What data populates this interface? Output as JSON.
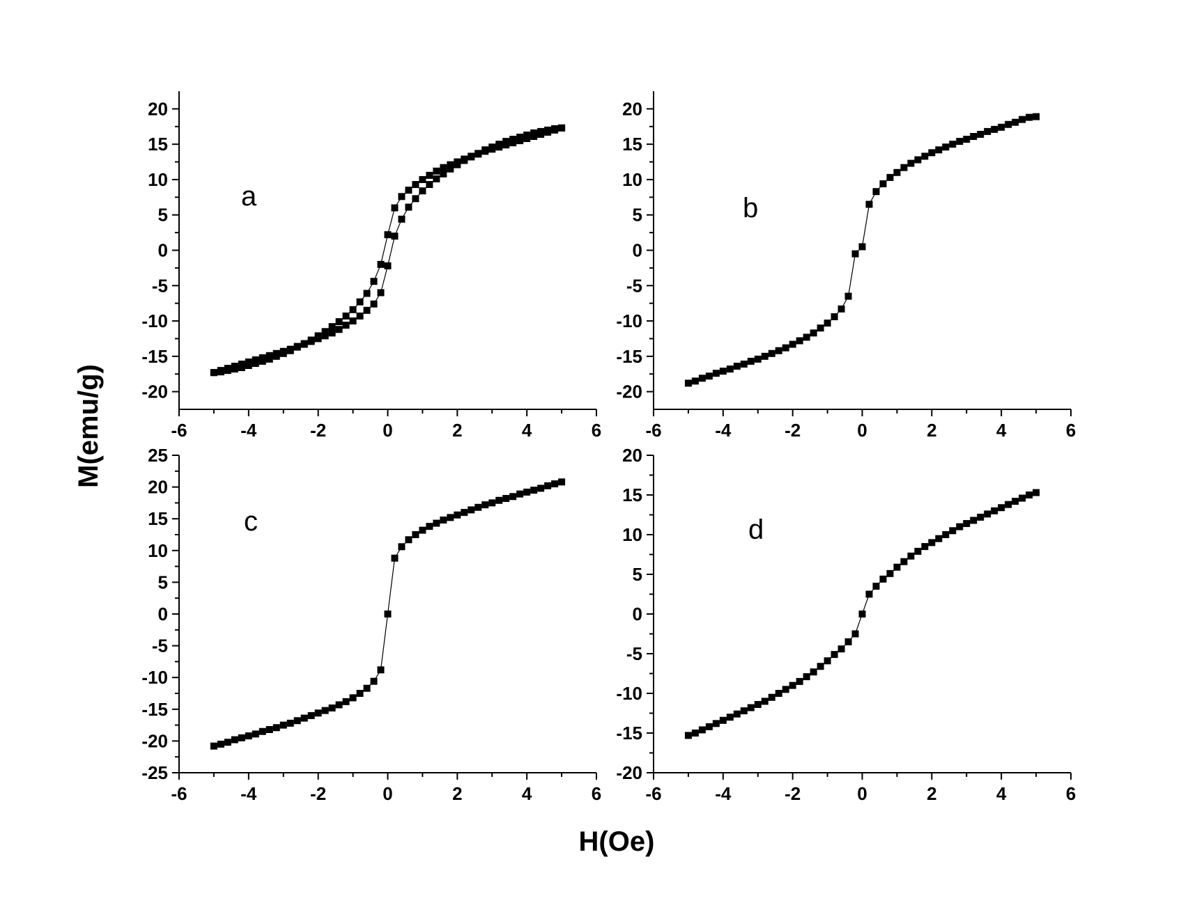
{
  "figure": {
    "ylabel": "M(emu/g)",
    "xlabel": "H(Oe)",
    "marker_color": "#000000"
  },
  "chart_data": [
    {
      "type": "scatter",
      "panel_label": "a",
      "xlim": [
        -6,
        6
      ],
      "ylim": [
        -22.5,
        22.5
      ],
      "xticks": [
        -6,
        -4,
        -2,
        0,
        2,
        4,
        6
      ],
      "yticks": [
        -20,
        -15,
        -10,
        -5,
        0,
        5,
        10,
        15,
        20
      ],
      "series": [
        {
          "x": [
            5,
            4.8,
            4.6,
            4.4,
            4.2,
            4,
            3.8,
            3.6,
            3.4,
            3.2,
            3,
            2.8,
            2.6,
            2.4,
            2.2,
            2,
            1.8,
            1.6,
            1.4,
            1.2,
            1,
            0.8,
            0.6,
            0.4,
            0.2,
            0,
            -0.2,
            -0.4,
            -0.6,
            -0.8,
            -1,
            -1.2,
            -1.4,
            -1.6,
            -1.8,
            -2,
            -2.2,
            -2.4,
            -2.6,
            -2.8,
            -3,
            -3.2,
            -3.4,
            -3.6,
            -3.8,
            -4,
            -4.2,
            -4.4,
            -4.6,
            -4.8,
            -5
          ],
          "y": [
            17.3,
            17.0,
            16.7,
            16.4,
            16.1,
            15.8,
            15.5,
            15.2,
            14.9,
            14.6,
            14.3,
            14.0,
            13.6,
            13.3,
            12.9,
            12.5,
            12.1,
            11.7,
            11.2,
            10.6,
            10.0,
            9.3,
            8.5,
            7.6,
            6.0,
            2.2,
            -2.0,
            -4.4,
            -6.1,
            -7.3,
            -8.4,
            -9.3,
            -10.1,
            -10.8,
            -11.5,
            -12.1,
            -12.7,
            -13.2,
            -13.7,
            -14.2,
            -14.6,
            -15.0,
            -15.4,
            -15.7,
            -16.0,
            -16.3,
            -16.6,
            -16.8,
            -17.0,
            -17.2,
            -17.3
          ]
        },
        {
          "x": [
            -5,
            -4.8,
            -4.6,
            -4.4,
            -4.2,
            -4,
            -3.8,
            -3.6,
            -3.4,
            -3.2,
            -3,
            -2.8,
            -2.6,
            -2.4,
            -2.2,
            -2,
            -1.8,
            -1.6,
            -1.4,
            -1.2,
            -1,
            -0.8,
            -0.6,
            -0.4,
            -0.2,
            0,
            0.2,
            0.4,
            0.6,
            0.8,
            1,
            1.2,
            1.4,
            1.6,
            1.8,
            2,
            2.2,
            2.4,
            2.6,
            2.8,
            3,
            3.2,
            3.4,
            3.6,
            3.8,
            4,
            4.2,
            4.4,
            4.6,
            4.8,
            5
          ],
          "y": [
            -17.3,
            -17.0,
            -16.7,
            -16.4,
            -16.1,
            -15.8,
            -15.5,
            -15.2,
            -14.9,
            -14.6,
            -14.3,
            -14.0,
            -13.6,
            -13.3,
            -12.9,
            -12.5,
            -12.1,
            -11.7,
            -11.2,
            -10.6,
            -10.0,
            -9.3,
            -8.5,
            -7.6,
            -6.0,
            -2.2,
            2.0,
            4.4,
            6.1,
            7.3,
            8.4,
            9.3,
            10.1,
            10.8,
            11.5,
            12.1,
            12.7,
            13.2,
            13.7,
            14.2,
            14.6,
            15.0,
            15.4,
            15.7,
            16.0,
            16.3,
            16.6,
            16.8,
            17.0,
            17.2,
            17.3
          ]
        }
      ]
    },
    {
      "type": "scatter",
      "panel_label": "b",
      "xlim": [
        -6,
        6
      ],
      "ylim": [
        -22.5,
        22.5
      ],
      "xticks": [
        -6,
        -4,
        -2,
        0,
        2,
        4,
        6
      ],
      "yticks": [
        -20,
        -15,
        -10,
        -5,
        0,
        5,
        10,
        15,
        20
      ],
      "series": [
        {
          "x": [
            -5,
            -4.8,
            -4.6,
            -4.4,
            -4.2,
            -4,
            -3.8,
            -3.6,
            -3.4,
            -3.2,
            -3,
            -2.8,
            -2.6,
            -2.4,
            -2.2,
            -2,
            -1.8,
            -1.6,
            -1.4,
            -1.2,
            -1,
            -0.8,
            -0.6,
            -0.4,
            -0.2,
            0,
            0.2,
            0.4,
            0.6,
            0.8,
            1,
            1.2,
            1.4,
            1.6,
            1.8,
            2,
            2.2,
            2.4,
            2.6,
            2.8,
            3,
            3.2,
            3.4,
            3.6,
            3.8,
            4,
            4.2,
            4.4,
            4.6,
            4.8,
            5
          ],
          "y": [
            -18.8,
            -18.5,
            -18.1,
            -17.8,
            -17.4,
            -17.1,
            -16.8,
            -16.4,
            -16.1,
            -15.7,
            -15.4,
            -15.0,
            -14.6,
            -14.2,
            -13.8,
            -13.3,
            -12.8,
            -12.3,
            -11.7,
            -11.0,
            -10.3,
            -9.4,
            -8.3,
            -6.5,
            -0.5,
            0.5,
            6.5,
            8.3,
            9.4,
            10.3,
            11.0,
            11.7,
            12.3,
            12.8,
            13.3,
            13.8,
            14.2,
            14.6,
            15.0,
            15.4,
            15.7,
            16.1,
            16.4,
            16.8,
            17.1,
            17.4,
            17.8,
            18.1,
            18.5,
            18.8,
            18.9
          ]
        }
      ]
    },
    {
      "type": "scatter",
      "panel_label": "c",
      "xlim": [
        -6,
        6
      ],
      "ylim": [
        -25,
        25
      ],
      "xticks": [
        -6,
        -4,
        -2,
        0,
        2,
        4,
        6
      ],
      "yticks": [
        -25,
        -20,
        -15,
        -10,
        -5,
        0,
        5,
        10,
        15,
        20,
        25
      ],
      "series": [
        {
          "x": [
            -5,
            -4.8,
            -4.6,
            -4.4,
            -4.2,
            -4,
            -3.8,
            -3.6,
            -3.4,
            -3.2,
            -3,
            -2.8,
            -2.6,
            -2.4,
            -2.2,
            -2,
            -1.8,
            -1.6,
            -1.4,
            -1.2,
            -1,
            -0.8,
            -0.6,
            -0.4,
            -0.2,
            0,
            0.2,
            0.4,
            0.6,
            0.8,
            1,
            1.2,
            1.4,
            1.6,
            1.8,
            2,
            2.2,
            2.4,
            2.6,
            2.8,
            3,
            3.2,
            3.4,
            3.6,
            3.8,
            4,
            4.2,
            4.4,
            4.6,
            4.8,
            5
          ],
          "y": [
            -20.8,
            -20.5,
            -20.2,
            -19.8,
            -19.5,
            -19.2,
            -18.9,
            -18.5,
            -18.2,
            -17.9,
            -17.5,
            -17.2,
            -16.8,
            -16.4,
            -16.0,
            -15.6,
            -15.2,
            -14.8,
            -14.3,
            -13.8,
            -13.2,
            -12.5,
            -11.7,
            -10.6,
            -8.8,
            0,
            8.8,
            10.6,
            11.7,
            12.5,
            13.2,
            13.8,
            14.3,
            14.8,
            15.2,
            15.6,
            16.0,
            16.4,
            16.8,
            17.2,
            17.5,
            17.9,
            18.2,
            18.5,
            18.9,
            19.2,
            19.5,
            19.8,
            20.2,
            20.5,
            20.8
          ]
        }
      ]
    },
    {
      "type": "scatter",
      "panel_label": "d",
      "xlim": [
        -6,
        6
      ],
      "ylim": [
        -20,
        20
      ],
      "xticks": [
        -6,
        -4,
        -2,
        0,
        2,
        4,
        6
      ],
      "yticks": [
        -20,
        -15,
        -10,
        -5,
        0,
        5,
        10,
        15,
        20
      ],
      "series": [
        {
          "x": [
            -5,
            -4.8,
            -4.6,
            -4.4,
            -4.2,
            -4,
            -3.8,
            -3.6,
            -3.4,
            -3.2,
            -3,
            -2.8,
            -2.6,
            -2.4,
            -2.2,
            -2,
            -1.8,
            -1.6,
            -1.4,
            -1.2,
            -1,
            -0.8,
            -0.6,
            -0.4,
            -0.2,
            0,
            0.2,
            0.4,
            0.6,
            0.8,
            1,
            1.2,
            1.4,
            1.6,
            1.8,
            2,
            2.2,
            2.4,
            2.6,
            2.8,
            3,
            3.2,
            3.4,
            3.6,
            3.8,
            4,
            4.2,
            4.4,
            4.6,
            4.8,
            5
          ],
          "y": [
            -15.3,
            -15.0,
            -14.6,
            -14.2,
            -13.8,
            -13.4,
            -13.0,
            -12.6,
            -12.2,
            -11.8,
            -11.4,
            -11.0,
            -10.5,
            -10.0,
            -9.5,
            -9.0,
            -8.5,
            -7.9,
            -7.3,
            -6.6,
            -5.9,
            -5.1,
            -4.4,
            -3.5,
            -2.5,
            0,
            2.5,
            3.5,
            4.4,
            5.1,
            5.9,
            6.6,
            7.3,
            7.9,
            8.5,
            9.0,
            9.5,
            10.0,
            10.5,
            11.0,
            11.4,
            11.8,
            12.2,
            12.6,
            13.0,
            13.4,
            13.8,
            14.2,
            14.6,
            15.0,
            15.3
          ]
        }
      ]
    }
  ]
}
